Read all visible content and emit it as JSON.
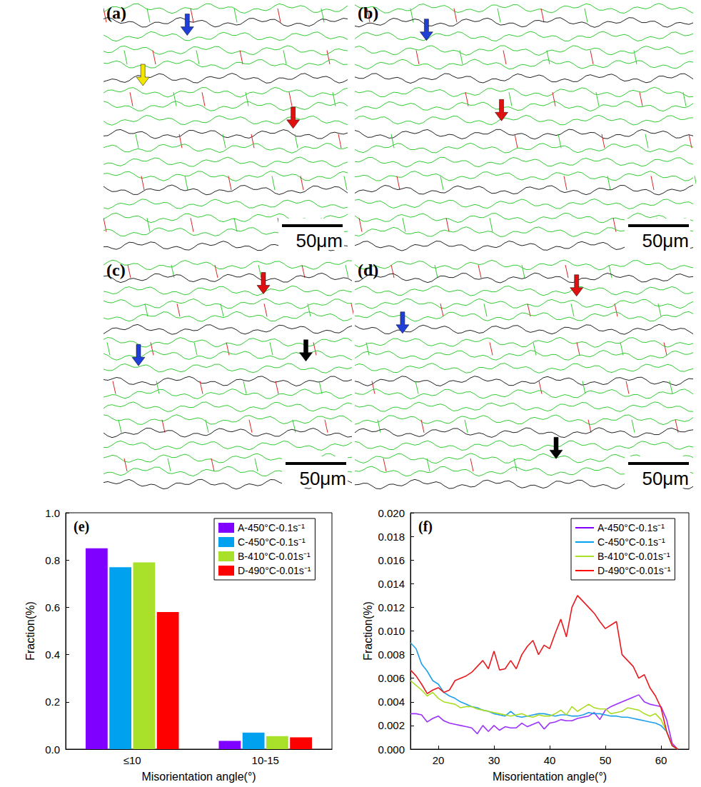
{
  "panels": [
    {
      "label": "(a)",
      "scale_bar": "50μm"
    },
    {
      "label": "(b)",
      "scale_bar": "50μm"
    },
    {
      "label": "(c)",
      "scale_bar": "50μm"
    },
    {
      "label": "(d)",
      "scale_bar": "50μm"
    }
  ],
  "chart_data": [
    {
      "type": "bar",
      "title": "(e)",
      "x_label": "Misorientation angle(°)",
      "y_label": "Fraction(%)",
      "categories": [
        "≤10",
        "10-15"
      ],
      "series": [
        {
          "name": "A-450°C-0.1s⁻¹",
          "color": "#8000ff",
          "values": [
            0.85,
            0.035
          ]
        },
        {
          "name": "C-450°C-0.1s⁻¹",
          "color": "#00a2f0",
          "values": [
            0.77,
            0.07
          ]
        },
        {
          "name": "B-410°C-0.01s⁻¹",
          "color": "#a8e02a",
          "values": [
            0.79,
            0.055
          ]
        },
        {
          "name": "D-490°C-0.01s⁻¹",
          "color": "#ff0000",
          "values": [
            0.58,
            0.05
          ]
        }
      ],
      "ylim": [
        0,
        1.0
      ],
      "yticks": [
        {
          "value": 0,
          "label": "0.0"
        },
        {
          "value": 0.2,
          "label": "0.2"
        },
        {
          "value": 0.4,
          "label": "0.4"
        },
        {
          "value": 0.6,
          "label": "0.6"
        },
        {
          "value": 0.8,
          "label": "0.8"
        },
        {
          "value": 1.0,
          "label": "1.0"
        }
      ],
      "grid": false,
      "legend": "upper right"
    },
    {
      "type": "line",
      "title": "(f)",
      "x_label": "Misorientation angle(°)",
      "y_label": "Fraction(%)",
      "x": [
        15,
        16,
        17,
        18,
        19,
        20,
        21,
        22,
        23,
        24,
        25,
        26,
        27,
        28,
        29,
        30,
        31,
        32,
        33,
        34,
        35,
        36,
        37,
        38,
        39,
        40,
        41,
        42,
        43,
        44,
        45,
        46,
        47,
        48,
        49,
        50,
        51,
        52,
        53,
        54,
        55,
        56,
        57,
        58,
        59,
        60,
        61,
        62,
        63
      ],
      "series": [
        {
          "name": "A-450°C-0.1s⁻¹",
          "color": "#9b30ff",
          "values": [
            0.003,
            0.003,
            0.0029,
            0.0023,
            0.0026,
            0.0028,
            0.0024,
            0.0022,
            0.0021,
            0.002,
            0.0019,
            0.0018,
            0.0013,
            0.002,
            0.0015,
            0.002,
            0.0016,
            0.0019,
            0.0018,
            0.0018,
            0.0022,
            0.0019,
            0.0021,
            0.0023,
            0.0017,
            0.0022,
            0.0023,
            0.0025,
            0.0024,
            0.0024,
            0.0026,
            0.0027,
            0.0028,
            0.0031,
            0.0025,
            0.0033,
            0.0036,
            0.0038,
            0.004,
            0.0042,
            0.0044,
            0.0046,
            0.004,
            0.0038,
            0.0037,
            0.0036,
            0.0025,
            0.0005,
            0.0
          ]
        },
        {
          "name": "C-450°C-0.1s⁻¹",
          "color": "#1e9fe8",
          "values": [
            0.009,
            0.0085,
            0.0072,
            0.0066,
            0.0058,
            0.0055,
            0.0048,
            0.0045,
            0.0043,
            0.004,
            0.0038,
            0.0036,
            0.0035,
            0.0033,
            0.0032,
            0.003,
            0.0029,
            0.0028,
            0.0032,
            0.0028,
            0.0027,
            0.0028,
            0.0029,
            0.003,
            0.003,
            0.0029,
            0.0028,
            0.0029,
            0.0029,
            0.0028,
            0.0028,
            0.0029,
            0.0031,
            0.003,
            0.003,
            0.0029,
            0.0028,
            0.0028,
            0.0027,
            0.0027,
            0.0026,
            0.0025,
            0.0024,
            0.0023,
            0.0022,
            0.002,
            0.0015,
            0.0003,
            0.0
          ]
        },
        {
          "name": "B-410°C-0.01s⁻¹",
          "color": "#aadd22",
          "values": [
            0.0058,
            0.0054,
            0.005,
            0.0045,
            0.0048,
            0.0043,
            0.004,
            0.0039,
            0.0038,
            0.0035,
            0.0036,
            0.0036,
            0.0034,
            0.0033,
            0.0032,
            0.0031,
            0.003,
            0.0029,
            0.0028,
            0.0029,
            0.003,
            0.0028,
            0.0027,
            0.0029,
            0.0028,
            0.0028,
            0.003,
            0.0033,
            0.0029,
            0.0036,
            0.0032,
            0.0035,
            0.0038,
            0.0035,
            0.0034,
            0.0034,
            0.003,
            0.0031,
            0.0032,
            0.0035,
            0.0034,
            0.0033,
            0.003,
            0.0028,
            0.003,
            0.0025,
            0.0015,
            0.0003,
            0.0
          ]
        },
        {
          "name": "D-490°C-0.01s⁻¹",
          "color": "#e8191c",
          "values": [
            0.0067,
            0.0062,
            0.0055,
            0.0047,
            0.005,
            0.0052,
            0.0048,
            0.005,
            0.0058,
            0.006,
            0.0062,
            0.0065,
            0.007,
            0.0075,
            0.0068,
            0.0083,
            0.0067,
            0.0068,
            0.0075,
            0.0068,
            0.008,
            0.0087,
            0.0092,
            0.008,
            0.0088,
            0.0085,
            0.0098,
            0.011,
            0.0095,
            0.012,
            0.013,
            0.0125,
            0.012,
            0.0115,
            0.0108,
            0.0102,
            0.0105,
            0.0108,
            0.008,
            0.0075,
            0.007,
            0.006,
            0.0063,
            0.0052,
            0.0045,
            0.0035,
            0.0015,
            0.0003,
            0.0
          ]
        }
      ],
      "xlim": [
        15,
        65
      ],
      "xticks": [
        20,
        30,
        40,
        50,
        60
      ],
      "ylim": [
        0,
        0.02
      ],
      "yticks": [
        {
          "value": 0,
          "label": "0.000"
        },
        {
          "value": 0.002,
          "label": "0.002"
        },
        {
          "value": 0.004,
          "label": "0.004"
        },
        {
          "value": 0.006,
          "label": "0.006"
        },
        {
          "value": 0.008,
          "label": "0.008"
        },
        {
          "value": 0.01,
          "label": "0.010"
        },
        {
          "value": 0.012,
          "label": "0.012"
        },
        {
          "value": 0.014,
          "label": "0.014"
        },
        {
          "value": 0.016,
          "label": "0.016"
        },
        {
          "value": 0.018,
          "label": "0.018"
        },
        {
          "value": 0.02,
          "label": "0.020"
        }
      ],
      "marker": "none",
      "line_style": "solid",
      "grid": false,
      "legend": "upper right"
    }
  ]
}
